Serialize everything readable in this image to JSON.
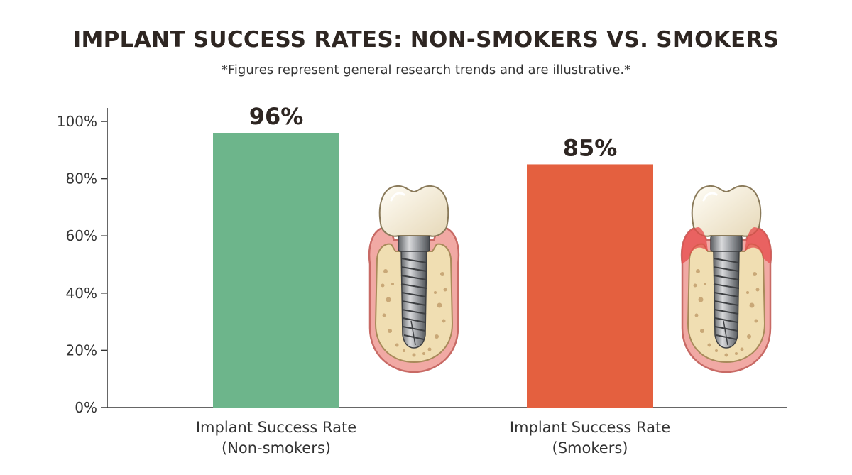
{
  "chart_data": {
    "type": "bar",
    "title": "IMPLANT SUCCESS RATES: NON-SMOKERS VS. SMOKERS",
    "subtitle": "*Figures represent general research trends and are illustrative.*",
    "categories": [
      [
        "Implant Success Rate",
        "(Non-smokers)"
      ],
      [
        "Implant Success Rate",
        "(Smokers)"
      ]
    ],
    "values": [
      96,
      85
    ],
    "value_labels": [
      "96%",
      "85%"
    ],
    "bar_colors": [
      "#6db58b",
      "#e4603f"
    ],
    "ylim": [
      0,
      100
    ],
    "yticks": [
      0,
      20,
      40,
      60,
      80,
      100
    ],
    "ytick_labels": [
      "0%",
      "20%",
      "40%",
      "60%",
      "80%",
      "100%"
    ],
    "grid": false,
    "illustrations": [
      "healthy-implant-icon",
      "inflamed-implant-icon"
    ]
  }
}
